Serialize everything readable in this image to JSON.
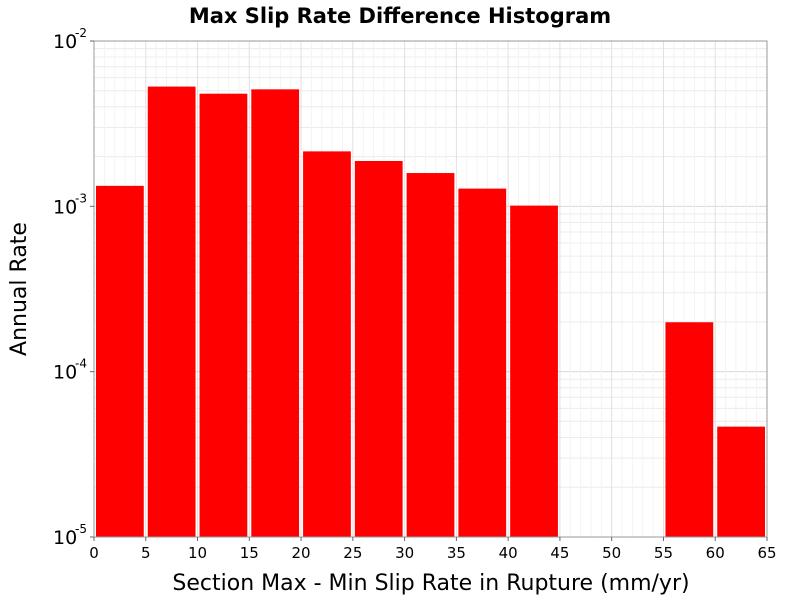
{
  "chart_data": {
    "type": "bar",
    "title": "Max Slip Rate Difference Histogram",
    "xlabel": "Section Max - Min Slip Rate in Rupture (mm/yr)",
    "ylabel": "Annual Rate",
    "xlim": [
      0,
      65
    ],
    "ylim": [
      1e-05,
      0.01
    ],
    "yscale": "log",
    "grid": true,
    "legend": "none",
    "bar_color": "#ff0000",
    "x_ticks": [
      "0",
      "5",
      "10",
      "15",
      "20",
      "25",
      "30",
      "35",
      "40",
      "45",
      "50",
      "55",
      "60",
      "65"
    ],
    "y_ticks": [
      {
        "base": "10",
        "exp": "-2",
        "value": 0.01
      },
      {
        "base": "10",
        "exp": "-3",
        "value": 0.001
      },
      {
        "base": "10",
        "exp": "-4",
        "value": 0.0001
      },
      {
        "base": "10",
        "exp": "-5",
        "value": 1e-05
      }
    ],
    "bins": [
      {
        "x0": 0,
        "x1": 5,
        "value": 0.00133
      },
      {
        "x0": 5,
        "x1": 10,
        "value": 0.0053
      },
      {
        "x0": 10,
        "x1": 15,
        "value": 0.0048
      },
      {
        "x0": 15,
        "x1": 20,
        "value": 0.0051
      },
      {
        "x0": 20,
        "x1": 25,
        "value": 0.00215
      },
      {
        "x0": 25,
        "x1": 30,
        "value": 0.00188
      },
      {
        "x0": 30,
        "x1": 35,
        "value": 0.00159
      },
      {
        "x0": 35,
        "x1": 40,
        "value": 0.00128
      },
      {
        "x0": 40,
        "x1": 45,
        "value": 0.00101
      },
      {
        "x0": 55,
        "x1": 60,
        "value": 0.000199
      },
      {
        "x0": 60,
        "x1": 65,
        "value": 4.65e-05
      }
    ]
  }
}
